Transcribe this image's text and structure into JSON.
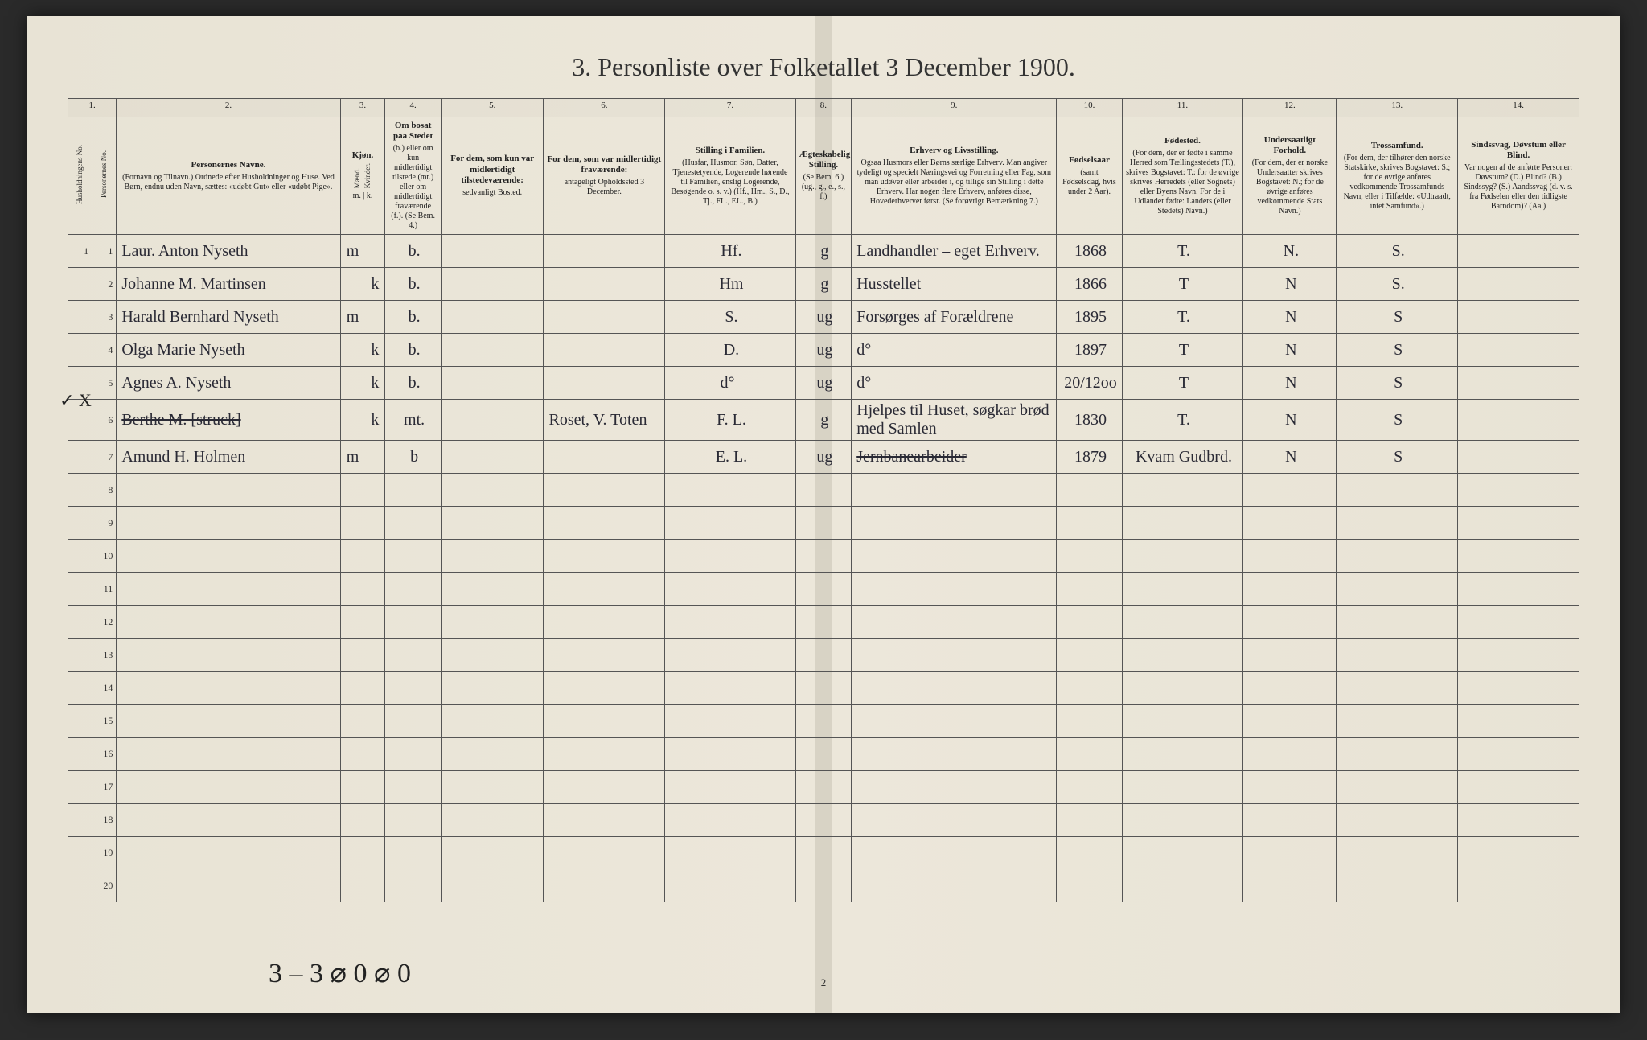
{
  "title": "3. Personliste over Folketallet 3 December 1900.",
  "colnums": [
    "1.",
    "2.",
    "3.",
    "4.",
    "5.",
    "6.",
    "7.",
    "8.",
    "9.",
    "10.",
    "11.",
    "12.",
    "13.",
    "14."
  ],
  "headers": {
    "c1a": "Husholdningens No.",
    "c1b": "Personernes No.",
    "c2_main": "Personernes Navne.",
    "c2_sub": "(Fornavn og Tilnavn.) Ordnede efter Husholdninger og Huse. Ved Børn, endnu uden Navn, sættes: «udøbt Gut» eller «udøbt Pige».",
    "c3_main": "Kjøn.",
    "c3a": "Mænd.",
    "c3b": "Kvinder.",
    "c3_sub": "m. | k.",
    "c4_main": "Om bosat paa Stedet",
    "c4_sub": "(b.) eller om kun midlertidigt tilstede (mt.) eller om midlertidigt fraværende (f.). (Se Bem. 4.)",
    "c5_main": "For dem, som kun var midlertidigt tilstedeværende:",
    "c5_sub": "sedvanligt Bosted.",
    "c6_main": "For dem, som var midlertidigt fraværende:",
    "c6_sub": "antageligt Opholdssted 3 December.",
    "c7_main": "Stilling i Familien.",
    "c7_sub": "(Husfar, Husmor, Søn, Datter, Tjenestetyende, Logerende hørende til Familien, enslig Logerende, Besøgende o. s. v.) (Hf., Hm., S., D., Tj., FL., EL., B.)",
    "c8_main": "Ægteskabelig Stilling.",
    "c8_sub": "(Se Bem. 6.) (ug., g., e., s., f.)",
    "c9_main": "Erhverv og Livsstilling.",
    "c9_sub": "Ogsaa Husmors eller Børns særlige Erhverv. Man angiver tydeligt og specielt Næringsvei og Forretning eller Fag, som man udøver eller arbeider i, og tillige sin Stilling i dette Erhverv. Har nogen flere Erhverv, anføres disse, Hovederhvervet først. (Se forøvrigt Bemærkning 7.)",
    "c10_main": "Fødselsaar",
    "c10_sub": "(samt Fødselsdag, hvis under 2 Aar).",
    "c11_main": "Fødested.",
    "c11_sub": "(For dem, der er fødte i samme Herred som Tællingsstedets (T.), skrives Bogstavet: T.: for de øvrige skrives Herredets (eller Sognets) eller Byens Navn. For de i Udlandet fødte: Landets (eller Stedets) Navn.)",
    "c12_main": "Undersaatligt Forhold.",
    "c12_sub": "(For dem, der er norske Undersaatter skrives Bogstavet: N.; for de øvrige anføres vedkommende Stats Navn.)",
    "c13_main": "Trossamfund.",
    "c13_sub": "(For dem, der tilhører den norske Statskirke, skrives Bogstavet: S.; for de øvrige anføres vedkommende Trossamfunds Navn, eller i Tilfælde: «Udtraadt, intet Samfund».)",
    "c14_main": "Sindssvag, Døvstum eller Blind.",
    "c14_sub": "Var nogen af de anførte Personer: Døvstum? (D.) Blind? (B.) Sindssyg? (S.) Aandssvag (d. v. s. fra Fødselen eller den tidligste Barndom)? (Aa.)"
  },
  "rows": [
    {
      "n": "1",
      "name": "Laur. Anton Nyseth",
      "m": "m",
      "k": "",
      "res": "b.",
      "c5": "",
      "c6": "",
      "fam": "Hf.",
      "marr": "g",
      "occ": "Landhandler – eget Erhverv.",
      "year": "1868",
      "birthpl": "T.",
      "nat": "N.",
      "faith": "S.",
      "c14": ""
    },
    {
      "n": "2",
      "name": "Johanne M. Martinsen",
      "m": "",
      "k": "k",
      "res": "b.",
      "c5": "",
      "c6": "",
      "fam": "Hm",
      "marr": "g",
      "occ": "Husstellet",
      "year": "1866",
      "birthpl": "T",
      "nat": "N",
      "faith": "S.",
      "c14": ""
    },
    {
      "n": "3",
      "name": "Harald Bernhard Nyseth",
      "m": "m",
      "k": "",
      "res": "b.",
      "c5": "",
      "c6": "",
      "fam": "S.",
      "marr": "ug",
      "occ": "Forsørges af Forældrene",
      "year": "1895",
      "birthpl": "T.",
      "nat": "N",
      "faith": "S",
      "c14": ""
    },
    {
      "n": "4",
      "name": "Olga Marie Nyseth",
      "m": "",
      "k": "k",
      "res": "b.",
      "c5": "",
      "c6": "",
      "fam": "D.",
      "marr": "ug",
      "occ": "d°–",
      "year": "1897",
      "birthpl": "T",
      "nat": "N",
      "faith": "S",
      "c14": ""
    },
    {
      "n": "5",
      "name": "Agnes A. Nyseth",
      "m": "",
      "k": "k",
      "res": "b.",
      "c5": "",
      "c6": "",
      "fam": "d°–",
      "marr": "ug",
      "occ": "d°–",
      "year": "20/12oo",
      "birthpl": "T",
      "nat": "N",
      "faith": "S",
      "c14": ""
    },
    {
      "n": "6",
      "name": "Berthe M. [struck]",
      "struck_name": true,
      "m": "",
      "k": "k",
      "res": "mt.",
      "c5": "",
      "c6": "Roset, V. Toten",
      "fam": "F. L.",
      "marr": "g",
      "occ": "Hjelpes til Huset, søgkar brød med Samlen",
      "year": "1830",
      "birthpl": "T.",
      "nat": "N",
      "faith": "S",
      "c14": ""
    },
    {
      "n": "7",
      "name": "Amund H. Holmen",
      "m": "m",
      "k": "",
      "res": "b",
      "c5": "",
      "c6": "",
      "fam": "E. L.",
      "marr": "ug",
      "occ": "Jernbanearbeider",
      "struck_occ": true,
      "year": "1879",
      "birthpl": "Kvam Gudbrd.",
      "nat": "N",
      "faith": "S",
      "c14": ""
    },
    {
      "n": "8"
    },
    {
      "n": "9"
    },
    {
      "n": "10"
    },
    {
      "n": "11"
    },
    {
      "n": "12"
    },
    {
      "n": "13"
    },
    {
      "n": "14"
    },
    {
      "n": "15"
    },
    {
      "n": "16"
    },
    {
      "n": "17"
    },
    {
      "n": "18"
    },
    {
      "n": "19"
    },
    {
      "n": "20"
    }
  ],
  "footer_scribble": "3 – 3  ⌀ 0   ⌀ 0",
  "page_num": "2",
  "margin_mark": "✓ X",
  "colors": {
    "paper": "#ece7da",
    "border": "#555555",
    "ink": "#2a2a35",
    "print": "#222222",
    "background": "#2a2a2a"
  }
}
